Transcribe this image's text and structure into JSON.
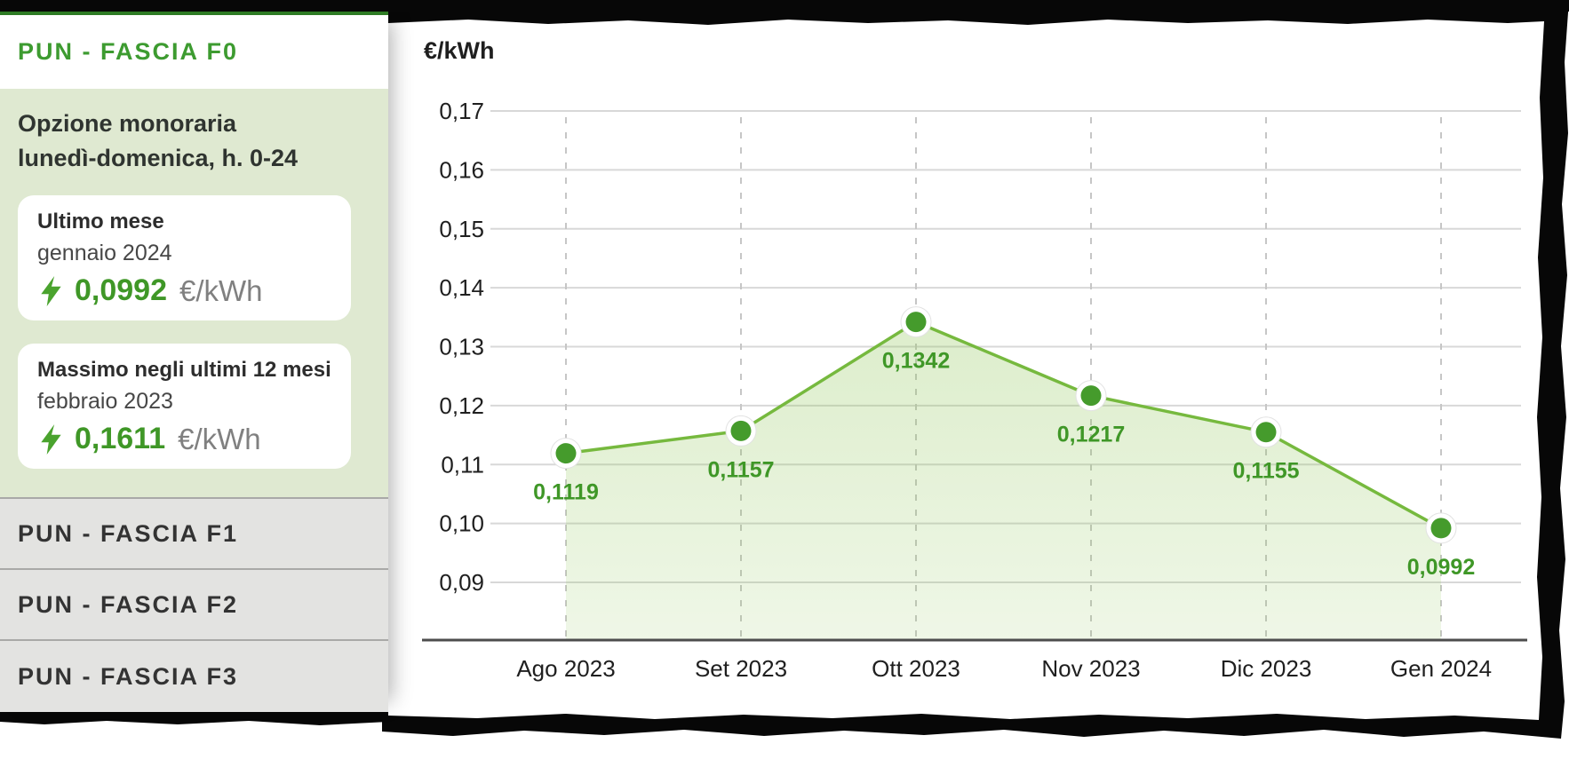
{
  "sidebar": {
    "accent_color": "#2e7b24",
    "active_section": {
      "label": "PUN - FASCIA F0",
      "label_color": "#3d9b30"
    },
    "panel": {
      "bg": "#dfe9d1",
      "heading_line1": "Opzione monoraria",
      "heading_line2": "lunedì-domenica, h. 0-24",
      "cards": [
        {
          "title": "Ultimo mese",
          "subtitle": "gennaio 2024",
          "value": "0,0992",
          "unit": "€/kWh"
        },
        {
          "title": "Massimo negli ultimi 12 mesi",
          "subtitle": "febbraio 2023",
          "value": "0,1611",
          "unit": "€/kWh"
        }
      ]
    },
    "items": [
      {
        "label": "PUN - FASCIA F1"
      },
      {
        "label": "PUN - FASCIA F2"
      },
      {
        "label": "PUN - FASCIA F3"
      }
    ]
  },
  "chart": {
    "unit_label": "€/kWh"
  },
  "chart_data": {
    "type": "area",
    "categories": [
      "Ago 2023",
      "Set 2023",
      "Ott 2023",
      "Nov 2023",
      "Dic 2023",
      "Gen 2024"
    ],
    "values": [
      0.1119,
      0.1157,
      0.1342,
      0.1217,
      0.1155,
      0.0992
    ],
    "point_labels": [
      "0,1119",
      "0,1157",
      "0,1342",
      "0,1217",
      "0,1155",
      "0,0992"
    ],
    "title": "",
    "xlabel": "",
    "ylabel": "€/kWh",
    "ylim": [
      0.09,
      0.17
    ],
    "ytick_step": 0.01,
    "ytick_labels": [
      "0,17",
      "0,16",
      "0,15",
      "0,14",
      "0,13",
      "0,12",
      "0,11",
      "0,10",
      "0,09"
    ],
    "grid": true,
    "legend": false,
    "colors": {
      "line": "#76b93e",
      "point": "#459b2c",
      "point_ring": "#ffffff",
      "value_label": "#3f9727",
      "fill_top": "rgba(141,197,84,0.30)",
      "fill_bottom": "rgba(141,197,84,0.14)",
      "gridline": "#d8d8d8",
      "dashed": "#c6c6c6",
      "axis": "#4d4d4d"
    }
  }
}
